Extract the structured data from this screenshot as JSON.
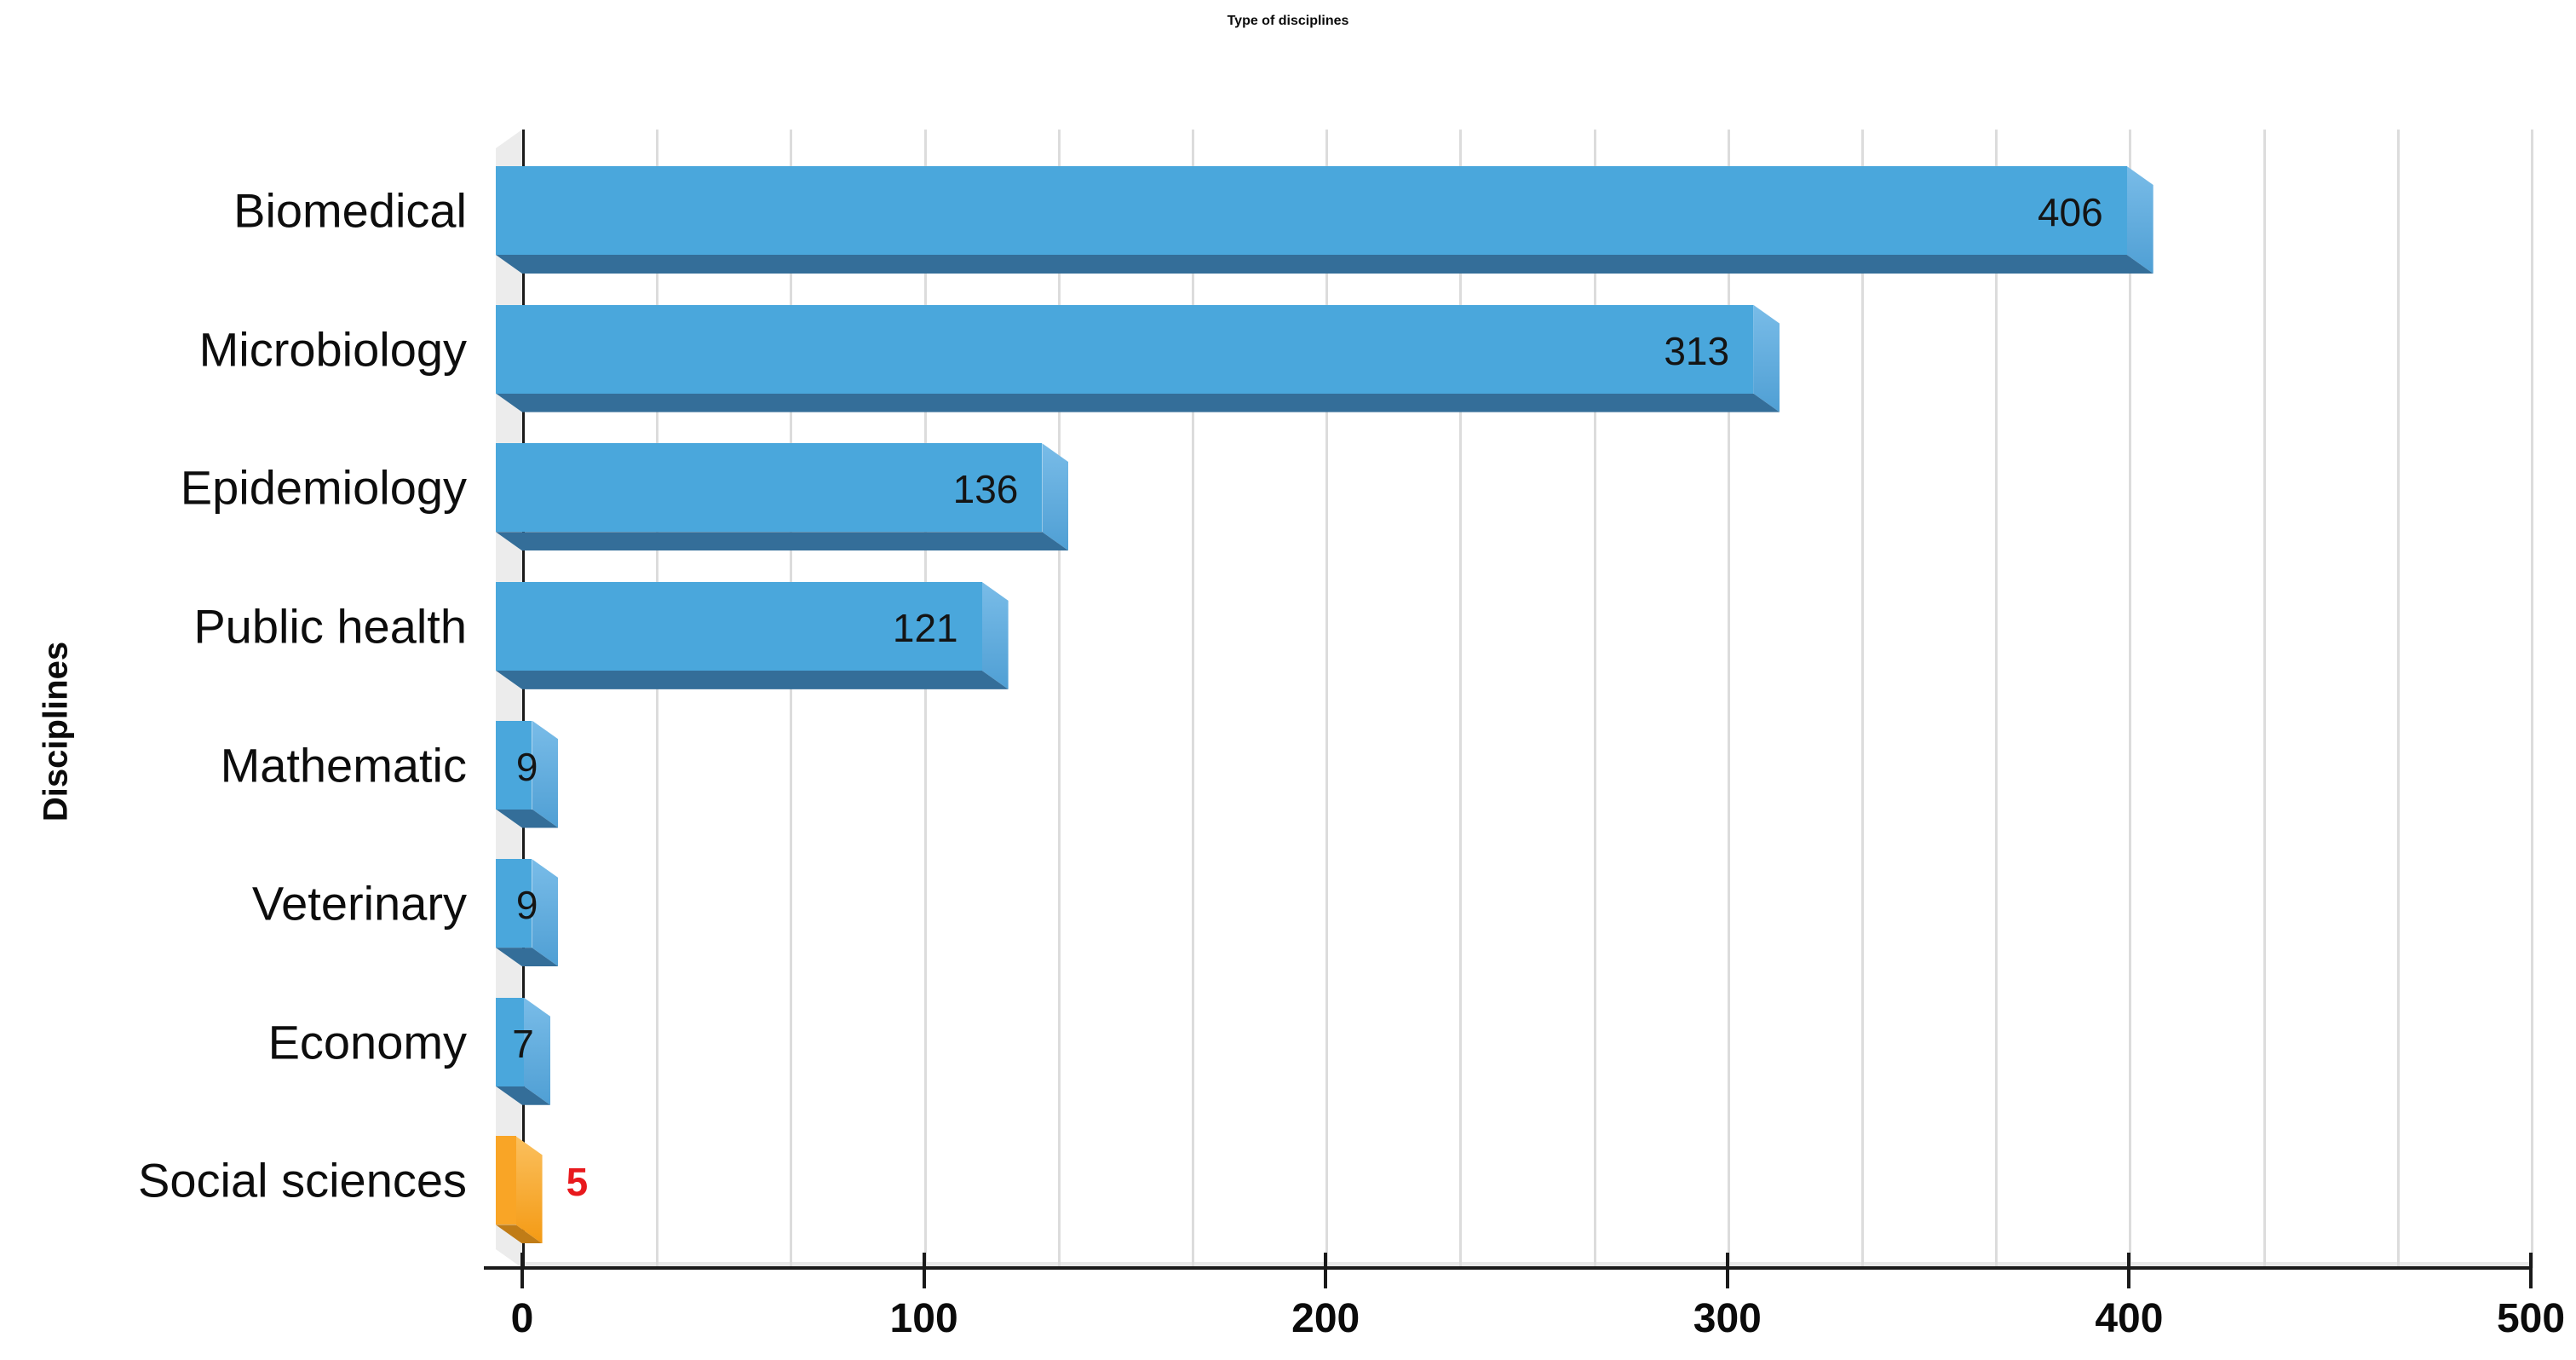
{
  "chart_data": {
    "type": "bar",
    "orientation": "horizontal",
    "title": "Type of disciplines",
    "xlabel": "",
    "ylabel": "Disciplines",
    "categories": [
      "Biomedical",
      "Microbiology",
      "Epidemiology",
      "Public health",
      "Mathematic",
      "Veterinary",
      "Economy",
      "Social sciences"
    ],
    "values": [
      406,
      313,
      136,
      121,
      9,
      9,
      7,
      5
    ],
    "data_labels": [
      "406",
      "313",
      "136",
      "121",
      "9",
      "9",
      "7",
      "5"
    ],
    "label_placement": [
      "inside-right",
      "inside-right",
      "inside-right",
      "inside-right",
      "center",
      "center",
      "center",
      "outside-right"
    ],
    "xlim": [
      0,
      500
    ],
    "x_ticks": [
      "0",
      "100",
      "200",
      "300",
      "400",
      "500"
    ],
    "minor_grid_divisions_per_major": 3,
    "grid": true,
    "legend": false,
    "style_3d": true,
    "highlight_index": 7,
    "colors": {
      "bar_face": "#4aa7dc",
      "bar_side_light": "#79bce8",
      "bar_side_dark": "#4f9fd4",
      "bar_bottom": "#346e99",
      "highlight_face": "#f9a526",
      "highlight_side_light": "#fbc05e",
      "highlight_side_dark": "#f49a14",
      "highlight_bottom": "#c07c17",
      "highlight_value_color": "#e8191d",
      "value_color": "#141414",
      "axis_color": "#1a1a1a",
      "gridline_color": "#dcdcdc",
      "wall_color": "#ececec"
    }
  }
}
